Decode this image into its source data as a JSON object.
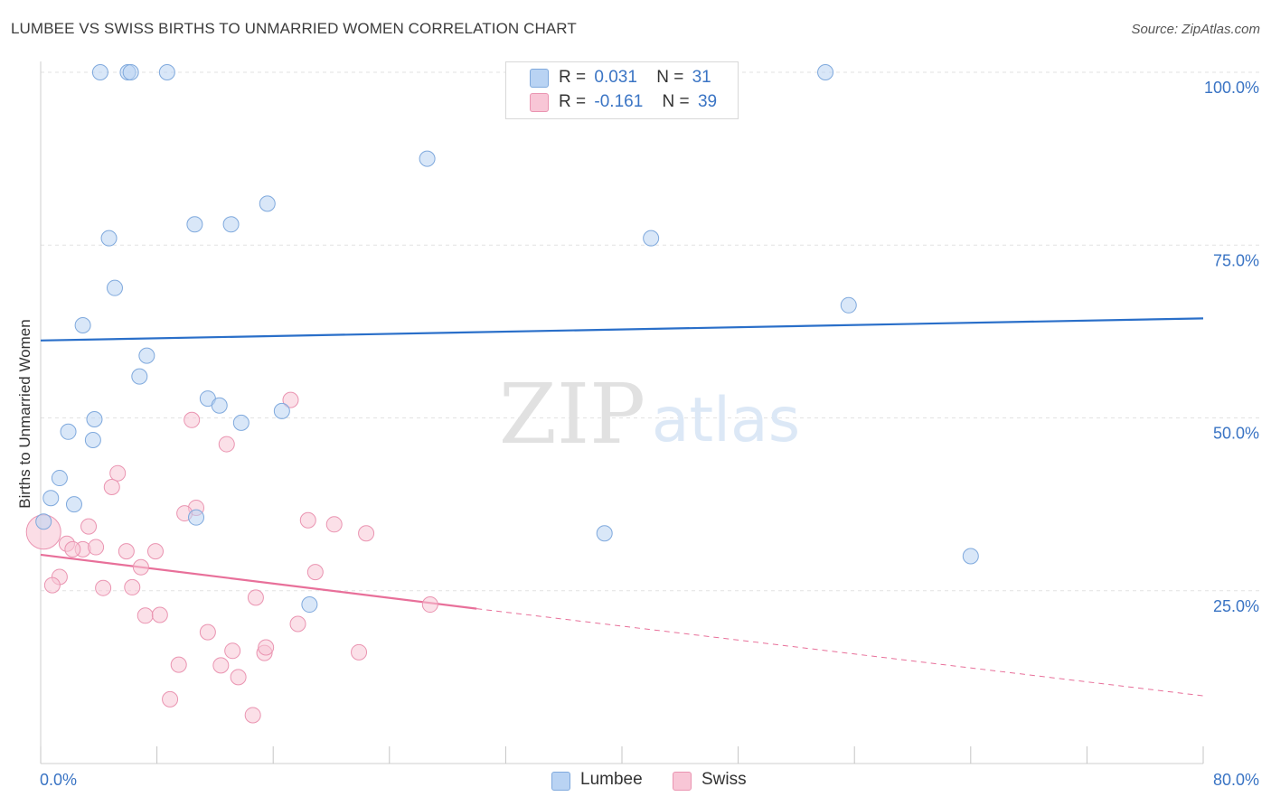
{
  "header": {
    "title": "LUMBEE VS SWISS BIRTHS TO UNMARRIED WOMEN CORRELATION CHART",
    "source": "Source: ZipAtlas.com"
  },
  "watermark": {
    "zip": "ZIP",
    "atlas": "atlas"
  },
  "legend": {
    "rows": [
      {
        "r_label": "R =",
        "r_value": "0.031",
        "n_label": "N =",
        "n_value": "31"
      },
      {
        "r_label": "R =",
        "r_value": "-0.161",
        "n_label": "N =",
        "n_value": "39"
      }
    ]
  },
  "bottom_legend": {
    "lumbee": "Lumbee",
    "swiss": "Swiss"
  },
  "colors": {
    "lumbee_fill": "#b9d3f3",
    "lumbee_stroke": "#7fa9dd",
    "lumbee_line": "#2a6fc9",
    "swiss_fill": "#f8c6d6",
    "swiss_stroke": "#ea94b1",
    "swiss_line": "#e8709a",
    "tick_label": "#3a74c4",
    "grid": "#e2e2e2"
  },
  "chart_data": {
    "type": "scatter",
    "title": "LUMBEE VS SWISS BIRTHS TO UNMARRIED WOMEN CORRELATION CHART",
    "xlabel": "",
    "ylabel": "Births to Unmarried Women",
    "xlim": [
      0,
      80
    ],
    "ylim": [
      0,
      100
    ],
    "x_tick_labels": [
      "0.0%",
      "80.0%"
    ],
    "y_tick_labels": [
      "100.0%",
      "75.0%",
      "50.0%",
      "25.0%"
    ],
    "y_ticks": [
      100,
      75,
      50,
      25
    ],
    "grid": true,
    "legend_position": "top-center",
    "series": [
      {
        "name": "Lumbee",
        "r": 0.031,
        "n": 31,
        "trend": {
          "x": [
            0,
            80
          ],
          "y": [
            61.2,
            64.4
          ]
        },
        "points": [
          [
            4.1,
            100
          ],
          [
            6.0,
            100
          ],
          [
            6.2,
            100
          ],
          [
            8.7,
            100
          ],
          [
            54.0,
            100
          ],
          [
            26.6,
            87.5
          ],
          [
            15.6,
            81.0
          ],
          [
            10.6,
            78.0
          ],
          [
            13.1,
            78.0
          ],
          [
            4.7,
            76.0
          ],
          [
            42.0,
            76.0
          ],
          [
            5.1,
            68.8
          ],
          [
            55.6,
            66.3
          ],
          [
            2.9,
            63.4
          ],
          [
            7.3,
            59.0
          ],
          [
            6.8,
            56.0
          ],
          [
            11.5,
            52.8
          ],
          [
            12.3,
            51.8
          ],
          [
            16.6,
            51.0
          ],
          [
            3.7,
            49.8
          ],
          [
            13.8,
            49.3
          ],
          [
            1.9,
            48.0
          ],
          [
            3.6,
            46.8
          ],
          [
            1.3,
            41.3
          ],
          [
            0.7,
            38.4
          ],
          [
            2.3,
            37.5
          ],
          [
            0.2,
            35.0
          ],
          [
            10.7,
            35.6
          ],
          [
            38.8,
            33.3
          ],
          [
            64.0,
            30.0
          ],
          [
            18.5,
            23.0
          ]
        ]
      },
      {
        "name": "Swiss",
        "r": -0.161,
        "n": 39,
        "trend": {
          "x": [
            0,
            30.0
          ],
          "y": [
            30.2,
            22.4
          ]
        },
        "trend_extension": {
          "x": [
            30.0,
            80
          ],
          "y": [
            22.4,
            9.8
          ]
        },
        "points": [
          [
            0.2,
            33.5
          ],
          [
            17.2,
            52.6
          ],
          [
            10.4,
            49.7
          ],
          [
            12.8,
            46.2
          ],
          [
            5.3,
            42.0
          ],
          [
            4.9,
            40.0
          ],
          [
            10.7,
            37.0
          ],
          [
            9.9,
            36.2
          ],
          [
            18.4,
            35.2
          ],
          [
            20.2,
            34.6
          ],
          [
            3.3,
            34.3
          ],
          [
            22.4,
            33.3
          ],
          [
            1.8,
            31.8
          ],
          [
            2.9,
            31.0
          ],
          [
            3.8,
            31.3
          ],
          [
            2.2,
            31.0
          ],
          [
            5.9,
            30.7
          ],
          [
            7.9,
            30.7
          ],
          [
            6.9,
            28.4
          ],
          [
            18.9,
            27.7
          ],
          [
            1.3,
            27.0
          ],
          [
            0.8,
            25.8
          ],
          [
            4.3,
            25.4
          ],
          [
            6.3,
            25.5
          ],
          [
            14.8,
            24.0
          ],
          [
            26.8,
            23.0
          ],
          [
            7.2,
            21.4
          ],
          [
            8.2,
            21.5
          ],
          [
            17.7,
            20.2
          ],
          [
            11.5,
            19.0
          ],
          [
            13.2,
            16.3
          ],
          [
            15.4,
            16.0
          ],
          [
            15.5,
            16.8
          ],
          [
            21.9,
            16.1
          ],
          [
            9.5,
            14.3
          ],
          [
            12.4,
            14.2
          ],
          [
            13.6,
            12.5
          ],
          [
            8.9,
            9.3
          ],
          [
            14.6,
            7.0
          ]
        ]
      }
    ]
  }
}
